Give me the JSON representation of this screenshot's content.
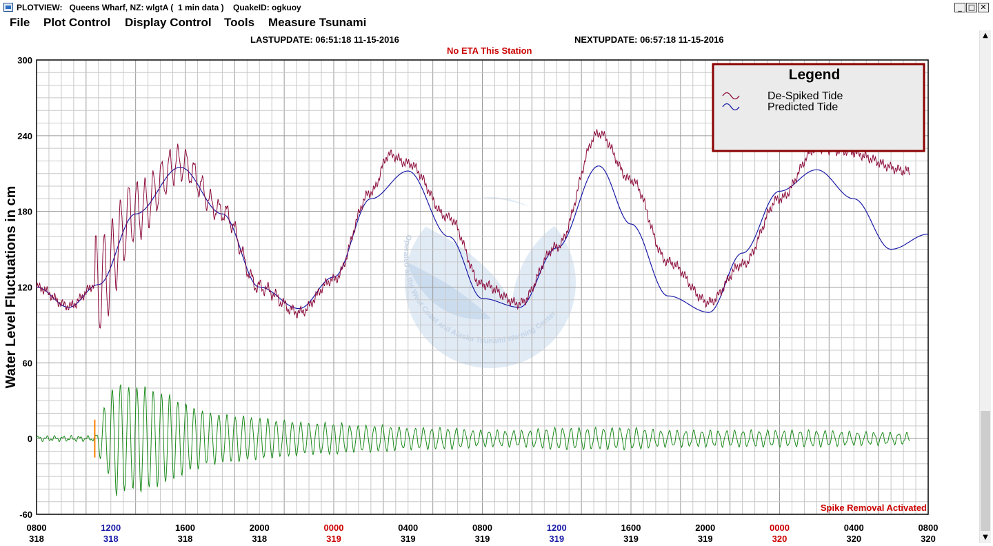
{
  "window": {
    "title": "PLOTVIEW:   Queens Wharf, NZ: wlgtA (  1 min data )    QuakeID: ogkuoy",
    "minimize": "_",
    "maximize": "□",
    "close": "✕"
  },
  "menu": [
    "File",
    "Plot Control",
    "Display Control",
    "Tools",
    "Measure Tsunami"
  ],
  "header": {
    "last_update": "LASTUPDATE: 06:51:18 11-15-2016",
    "next_update": "NEXTUPDATE: 06:57:18 11-15-2016",
    "eta": "No ETA This Station"
  },
  "status": {
    "spike_removal": "Spike Removal Activated"
  },
  "scrollbar": {
    "up": "▲",
    "down": "▼"
  },
  "watermark": {
    "text": "Operated at the West Coast and Alaska Tsunami Warning Center"
  },
  "colors": {
    "despiked": "#8b0a3a",
    "predicted": "#1a1aa8",
    "residual": "#1a8a1a",
    "legend_border": "#8b0000",
    "red_label": "#cc0000",
    "blue_label": "#1a1aa8"
  },
  "chart_data": {
    "type": "line",
    "ylabel": "Water Level Fluctuations in cm",
    "ylim": [
      -60,
      300
    ],
    "y_ticks": [
      "300",
      "240",
      "180",
      "120",
      "60",
      "0",
      "-60"
    ],
    "x_unit": "hours since 0800 day 318",
    "xlim": [
      0,
      72
    ],
    "x_ticks": [
      {
        "time": "0800",
        "day": "318",
        "color": "black"
      },
      {
        "time": "1200",
        "day": "318",
        "color": "blue"
      },
      {
        "time": "1600",
        "day": "318",
        "color": "black"
      },
      {
        "time": "2000",
        "day": "318",
        "color": "black"
      },
      {
        "time": "0000",
        "day": "319",
        "color": "red"
      },
      {
        "time": "0400",
        "day": "319",
        "color": "black"
      },
      {
        "time": "0800",
        "day": "319",
        "color": "black"
      },
      {
        "time": "1200",
        "day": "319",
        "color": "blue"
      },
      {
        "time": "1600",
        "day": "319",
        "color": "black"
      },
      {
        "time": "2000",
        "day": "319",
        "color": "black"
      },
      {
        "time": "0000",
        "day": "320",
        "color": "red"
      },
      {
        "time": "0400",
        "day": "320",
        "color": "black"
      },
      {
        "time": "0800",
        "day": "320",
        "color": "black"
      }
    ],
    "legend": {
      "title": "Legend",
      "entries": [
        "De-Spiked Tide",
        "Predicted Tide"
      ],
      "position": "top-right"
    },
    "grid": true,
    "event_marker_hour": 4.7,
    "series": [
      {
        "name": "Predicted Tide",
        "x": [
          0,
          2.6,
          5,
          8,
          11.6,
          15,
          18,
          21.2,
          24,
          27,
          30,
          33.3,
          36,
          39,
          42,
          45.4,
          48,
          51,
          54.3,
          57,
          60,
          63,
          66,
          69,
          72
        ],
        "y": [
          120,
          104,
          122,
          178,
          215,
          178,
          120,
          103,
          128,
          190,
          212,
          160,
          111,
          104,
          151,
          216,
          170,
          113,
          100,
          147,
          196,
          213,
          190,
          150,
          162
        ]
      },
      {
        "name": "De-Spiked Tide",
        "x": [
          0,
          2.6,
          5,
          8,
          11.6,
          15,
          18,
          21.2,
          24,
          27,
          28.5,
          30,
          33.3,
          36,
          39,
          42,
          45.4,
          48,
          51,
          54.3,
          57,
          60,
          63,
          65,
          70.5
        ],
        "y": [
          120,
          105,
          123,
          180,
          218,
          180,
          120,
          100,
          126,
          195,
          225,
          218,
          175,
          122,
          107,
          152,
          242,
          205,
          140,
          108,
          138,
          190,
          230,
          228,
          212
        ]
      },
      {
        "name": "Residual",
        "x": [
          0,
          3,
          4.7,
          5.5,
          6.5,
          7.5,
          8.5,
          9.5,
          10.5,
          11.5,
          12.5,
          14,
          16,
          18,
          20,
          22,
          24,
          26,
          28,
          30,
          33,
          36,
          39,
          42,
          45,
          48,
          51,
          54,
          57,
          60,
          63,
          66,
          70.5
        ],
        "y": [
          0,
          0,
          2,
          25,
          45,
          40,
          42,
          38,
          35,
          30,
          25,
          20,
          18,
          16,
          14,
          12,
          12,
          10,
          10,
          8,
          8,
          6,
          6,
          8,
          8,
          8,
          6,
          6,
          6,
          6,
          6,
          5,
          4
        ]
      }
    ]
  }
}
